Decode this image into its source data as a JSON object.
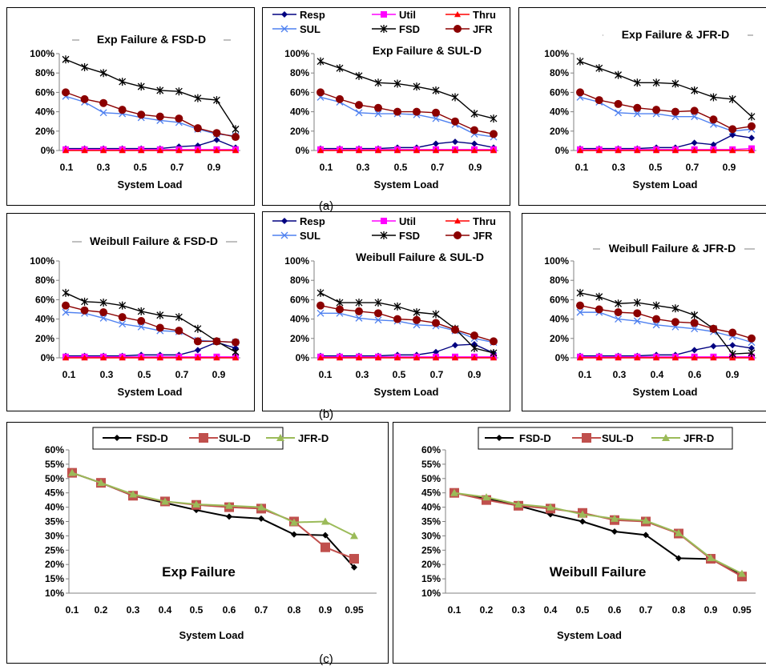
{
  "colors": {
    "Resp": "#000080",
    "Util": "#ff00ff",
    "Thru": "#ff0000",
    "SUL": "#4f81f0",
    "FSD": "#000000",
    "JFR": "#8b0000",
    "FSD-D": "#000000",
    "SUL-D": "#c0504d",
    "JFR-D": "#9bbb59"
  },
  "captions": {
    "a": "(a)",
    "b": "(b)",
    "c": "(c)"
  },
  "chart_data": [
    {
      "id": "a1",
      "type": "line",
      "title": "Exp Failure & FSD-D",
      "xlabel": "System Load",
      "x": [
        0.1,
        0.2,
        0.3,
        0.4,
        0.5,
        0.6,
        0.7,
        0.8,
        0.9,
        1.0
      ],
      "xticks": [
        "0.1",
        "0.3",
        "0.5",
        "0.7",
        "0.9"
      ],
      "yticks": [
        "0%",
        "20%",
        "40%",
        "60%",
        "80%",
        "100%"
      ],
      "ylim": [
        0,
        100
      ],
      "series": [
        {
          "name": "Resp",
          "values": [
            2,
            2,
            2,
            2,
            2,
            2,
            4,
            5,
            11,
            3
          ]
        },
        {
          "name": "Util",
          "values": [
            1,
            1,
            1,
            1,
            1,
            1,
            1,
            1,
            1,
            1
          ]
        },
        {
          "name": "Thru",
          "values": [
            0,
            0,
            0,
            0,
            0,
            0,
            0,
            0,
            0,
            0
          ]
        },
        {
          "name": "SUL",
          "values": [
            56,
            50,
            39,
            38,
            34,
            31,
            29,
            22,
            17,
            15
          ]
        },
        {
          "name": "FSD",
          "values": [
            94,
            86,
            80,
            71,
            66,
            62,
            61,
            54,
            52,
            22
          ]
        },
        {
          "name": "JFR",
          "values": [
            60,
            53,
            49,
            42,
            37,
            35,
            33,
            23,
            18,
            14
          ]
        }
      ]
    },
    {
      "id": "a2",
      "type": "line",
      "title": "Exp Failure & SUL-D",
      "xlabel": "System  Load",
      "x": [
        0.1,
        0.2,
        0.3,
        0.4,
        0.5,
        0.6,
        0.7,
        0.8,
        0.9,
        1.0
      ],
      "xticks": [
        "0.1",
        "0.3",
        "0.5",
        "0.7",
        "0.9"
      ],
      "yticks": [
        "0%",
        "20%",
        "40%",
        "60%",
        "80%",
        "100%"
      ],
      "ylim": [
        0,
        100
      ],
      "legend": [
        {
          "name": "Resp",
          "label": "Resp"
        },
        {
          "name": "Util",
          "label": "Util"
        },
        {
          "name": "Thru",
          "label": "Thru"
        },
        {
          "name": "SUL",
          "label": "SUL"
        },
        {
          "name": "FSD",
          "label": "FSD"
        },
        {
          "name": "JFR",
          "label": "JFR"
        }
      ],
      "series": [
        {
          "name": "Resp",
          "values": [
            2,
            2,
            2,
            2,
            3,
            3,
            7,
            9,
            7,
            3
          ]
        },
        {
          "name": "Util",
          "values": [
            1,
            1,
            1,
            1,
            1,
            1,
            1,
            1,
            1,
            1
          ]
        },
        {
          "name": "Thru",
          "values": [
            0,
            0,
            0,
            0,
            0,
            0,
            0,
            0,
            0,
            0
          ]
        },
        {
          "name": "SUL",
          "values": [
            55,
            50,
            39,
            38,
            38,
            37,
            33,
            27,
            17,
            14
          ]
        },
        {
          "name": "FSD",
          "values": [
            92,
            85,
            77,
            70,
            69,
            66,
            62,
            55,
            38,
            33
          ]
        },
        {
          "name": "JFR",
          "values": [
            60,
            53,
            47,
            44,
            40,
            40,
            39,
            30,
            21,
            17
          ]
        }
      ]
    },
    {
      "id": "a3",
      "type": "line",
      "title": "Exp Failure & JFR-D",
      "xlabel": "System  Load",
      "x": [
        0.1,
        0.2,
        0.3,
        0.4,
        0.5,
        0.6,
        0.7,
        0.8,
        0.9,
        1.0
      ],
      "xticks": [
        "0.1",
        "0.3",
        "0.5",
        "0.7",
        "0.9"
      ],
      "yticks": [
        "0%",
        "20%",
        "40%",
        "60%",
        "80%",
        "100%"
      ],
      "ylim": [
        0,
        100
      ],
      "series": [
        {
          "name": "Resp",
          "values": [
            2,
            2,
            2,
            2,
            3,
            3,
            8,
            6,
            16,
            13
          ]
        },
        {
          "name": "Util",
          "values": [
            1,
            1,
            1,
            1,
            1,
            1,
            1,
            1,
            1,
            2
          ]
        },
        {
          "name": "Thru",
          "values": [
            0,
            0,
            0,
            0,
            0,
            0,
            0,
            0,
            0,
            0
          ]
        },
        {
          "name": "SUL",
          "values": [
            55,
            50,
            39,
            38,
            38,
            35,
            35,
            27,
            20,
            22
          ]
        },
        {
          "name": "FSD",
          "values": [
            92,
            85,
            78,
            70,
            70,
            69,
            62,
            55,
            53,
            35
          ]
        },
        {
          "name": "JFR",
          "values": [
            60,
            52,
            48,
            44,
            42,
            40,
            41,
            32,
            22,
            25
          ]
        }
      ]
    },
    {
      "id": "b1",
      "type": "line",
      "title": "Weibull Failure & FSD-D",
      "xlabel": "System Load",
      "x": [
        0.1,
        0.2,
        0.3,
        0.4,
        0.5,
        0.6,
        0.7,
        0.8,
        0.9,
        1.0
      ],
      "xticks": [
        "0.1",
        "0.3",
        "0.5",
        "0.7",
        "0.9"
      ],
      "yticks": [
        "0%",
        "20%",
        "40%",
        "60%",
        "80%",
        "100%"
      ],
      "ylim": [
        0,
        100
      ],
      "series": [
        {
          "name": "Resp",
          "values": [
            2,
            2,
            2,
            2,
            3,
            3,
            3,
            8,
            16,
            10
          ]
        },
        {
          "name": "Util",
          "values": [
            1,
            1,
            1,
            1,
            1,
            1,
            1,
            1,
            1,
            1
          ]
        },
        {
          "name": "Thru",
          "values": [
            0,
            0,
            0,
            0,
            0,
            0,
            0,
            0,
            0,
            0
          ]
        },
        {
          "name": "SUL",
          "values": [
            47,
            46,
            41,
            35,
            32,
            28,
            27,
            18,
            17,
            16
          ]
        },
        {
          "name": "FSD",
          "values": [
            67,
            58,
            57,
            54,
            48,
            44,
            42,
            30,
            17,
            6
          ]
        },
        {
          "name": "JFR",
          "values": [
            54,
            49,
            47,
            42,
            38,
            31,
            28,
            17,
            17,
            16
          ]
        }
      ]
    },
    {
      "id": "b2",
      "type": "line",
      "title": "Weibull Failure & SUL-D",
      "xlabel": "System Load",
      "x": [
        0.1,
        0.2,
        0.3,
        0.4,
        0.5,
        0.6,
        0.7,
        0.8,
        0.9,
        1.0
      ],
      "xticks": [
        "0.1",
        "0.3",
        "0.5",
        "0.7",
        "0.9"
      ],
      "yticks": [
        "0%",
        "20%",
        "40%",
        "60%",
        "80%",
        "100%"
      ],
      "ylim": [
        0,
        100
      ],
      "legend": [
        {
          "name": "Resp",
          "label": "Resp"
        },
        {
          "name": "Util",
          "label": "Util"
        },
        {
          "name": "Thru",
          "label": "Thru"
        },
        {
          "name": "SUL",
          "label": "SUL"
        },
        {
          "name": "FSD",
          "label": "FSD"
        },
        {
          "name": "JFR",
          "label": "JFR"
        }
      ],
      "series": [
        {
          "name": "Resp",
          "values": [
            2,
            2,
            2,
            2,
            3,
            3,
            6,
            13,
            14,
            5
          ]
        },
        {
          "name": "Util",
          "values": [
            1,
            1,
            1,
            1,
            1,
            1,
            1,
            1,
            1,
            1
          ]
        },
        {
          "name": "Thru",
          "values": [
            0,
            0,
            0,
            0,
            0,
            0,
            0,
            0,
            0,
            0
          ]
        },
        {
          "name": "SUL",
          "values": [
            46,
            46,
            41,
            39,
            38,
            34,
            33,
            28,
            20,
            16
          ]
        },
        {
          "name": "FSD",
          "values": [
            67,
            57,
            57,
            57,
            53,
            47,
            45,
            30,
            10,
            5
          ]
        },
        {
          "name": "JFR",
          "values": [
            54,
            50,
            48,
            46,
            40,
            39,
            36,
            29,
            23,
            17
          ]
        }
      ]
    },
    {
      "id": "b3",
      "type": "line",
      "title": "Weibull Failure & JFR-D",
      "xlabel": "System Load",
      "x": [
        0.1,
        0.2,
        0.3,
        0.4,
        0.5,
        0.6,
        0.7,
        0.8,
        0.9,
        1.0
      ],
      "xticks": [
        "0.1",
        "0.3",
        "0.4",
        "0.6",
        "0.9"
      ],
      "yticks": [
        "0%",
        "20%",
        "40%",
        "60%",
        "80%",
        "100%"
      ],
      "ylim": [
        0,
        100
      ],
      "series": [
        {
          "name": "Resp",
          "values": [
            2,
            2,
            2,
            2,
            3,
            3,
            8,
            12,
            13,
            10
          ]
        },
        {
          "name": "Util",
          "values": [
            1,
            1,
            1,
            1,
            1,
            1,
            1,
            1,
            1,
            1
          ]
        },
        {
          "name": "Thru",
          "values": [
            0,
            0,
            0,
            0,
            0,
            0,
            0,
            0,
            0,
            0
          ]
        },
        {
          "name": "SUL",
          "values": [
            47,
            47,
            40,
            38,
            34,
            32,
            30,
            27,
            22,
            16
          ]
        },
        {
          "name": "FSD",
          "values": [
            67,
            63,
            56,
            57,
            54,
            51,
            44,
            30,
            4,
            5
          ]
        },
        {
          "name": "JFR",
          "values": [
            54,
            50,
            47,
            46,
            40,
            37,
            36,
            30,
            26,
            20
          ]
        }
      ]
    },
    {
      "id": "c1",
      "type": "line",
      "title": "Exp Failure",
      "xlabel": "System  Load",
      "x": [
        0.1,
        0.2,
        0.3,
        0.4,
        0.5,
        0.6,
        0.7,
        0.8,
        0.9,
        0.95
      ],
      "xticks": [
        "0.1",
        "0.2",
        "0.3",
        "0.4",
        "0.5",
        "0.6",
        "0.7",
        "0.8",
        "0.9",
        "0.95"
      ],
      "yticks": [
        "10%",
        "15%",
        "20%",
        "25%",
        "30%",
        "35%",
        "40%",
        "45%",
        "50%",
        "55%",
        "60%"
      ],
      "ylim": [
        10,
        60
      ],
      "legend": [
        {
          "name": "FSD-D",
          "label": "FSD-D"
        },
        {
          "name": "SUL-D",
          "label": "SUL-D"
        },
        {
          "name": "JFR-D",
          "label": "JFR-D"
        }
      ],
      "series": [
        {
          "name": "FSD-D",
          "values": [
            52,
            48.5,
            44,
            41.5,
            39,
            36.7,
            36,
            30.5,
            30.2,
            19
          ]
        },
        {
          "name": "SUL-D",
          "values": [
            52,
            48.5,
            44,
            42,
            40.8,
            40,
            39.5,
            35,
            26,
            22
          ]
        },
        {
          "name": "JFR-D",
          "values": [
            52,
            48.5,
            44.5,
            42,
            41,
            40.5,
            40,
            34.7,
            35,
            30
          ]
        }
      ]
    },
    {
      "id": "c2",
      "type": "line",
      "title": "Weibull  Failure",
      "xlabel": "System  Load",
      "x": [
        0.1,
        0.2,
        0.3,
        0.4,
        0.5,
        0.6,
        0.7,
        0.8,
        0.9,
        0.95
      ],
      "xticks": [
        "0.1",
        "0.2",
        "0.3",
        "0.4",
        "0.5",
        "0.6",
        "0.7",
        "0.8",
        "0.9",
        "0.95"
      ],
      "yticks": [
        "10%",
        "15%",
        "20%",
        "25%",
        "30%",
        "35%",
        "40%",
        "45%",
        "50%",
        "55%",
        "60%"
      ],
      "ylim": [
        10,
        60
      ],
      "legend": [
        {
          "name": "FSD-D",
          "label": "FSD-D"
        },
        {
          "name": "SUL-D",
          "label": "SUL-D"
        },
        {
          "name": "JFR-D",
          "label": "JFR-D"
        }
      ],
      "series": [
        {
          "name": "FSD-D",
          "values": [
            45,
            43,
            40.5,
            37.5,
            35,
            31.5,
            30.3,
            22.2,
            21.9,
            16.5
          ]
        },
        {
          "name": "SUL-D",
          "values": [
            45,
            42.5,
            40.5,
            39.5,
            38,
            35.5,
            35,
            30.8,
            22,
            15.8
          ]
        },
        {
          "name": "JFR-D",
          "values": [
            45,
            43.5,
            41,
            40,
            37.5,
            36,
            35.3,
            31,
            22.3,
            16.8
          ]
        }
      ]
    }
  ]
}
